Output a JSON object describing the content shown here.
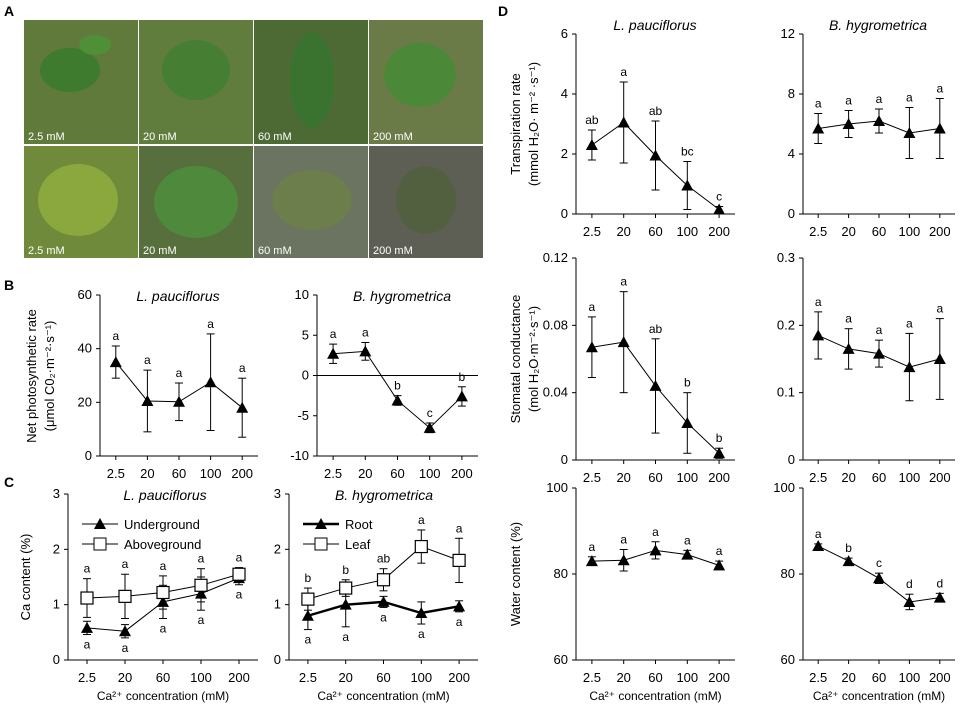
{
  "figure": {
    "panel_labels": {
      "A": "A",
      "B": "B",
      "C": "C",
      "D": "D"
    },
    "photos": [
      {
        "label": "2.5 mM",
        "bg": "#5f7a3a"
      },
      {
        "label": "20 mM",
        "bg": "#607d3e"
      },
      {
        "label": "60 mM",
        "bg": "#4d6a35"
      },
      {
        "label": "200 mM",
        "bg": "#6b7b48"
      },
      {
        "label": "2.5 mM",
        "bg": "#6f8a3a"
      },
      {
        "label": "20 mM",
        "bg": "#566f3d"
      },
      {
        "label": "60 mM",
        "bg": "#6a7460"
      },
      {
        "label": "200 mM",
        "bg": "#5d5f55"
      }
    ],
    "colors": {
      "line": "#000000",
      "photo_caption": "#ffffff"
    }
  },
  "chart_data": [
    {
      "id": "B1",
      "type": "line",
      "title": "L. pauciflorus",
      "ylabel": [
        "Net photosynthetic rate",
        "(μmol C0₂·m⁻²·s⁻¹)"
      ],
      "xlabel": "",
      "categories": [
        "2.5",
        "20",
        "60",
        "100",
        "200"
      ],
      "ylim": [
        0,
        60
      ],
      "yticks": [
        "0",
        "20",
        "40",
        "60"
      ],
      "series": [
        {
          "name": "",
          "marker": "triangle",
          "values": [
            35,
            20.5,
            20.2,
            27.5,
            18
          ],
          "errors": [
            6,
            11.5,
            7,
            18,
            11
          ],
          "letters": [
            "a",
            "a",
            "a",
            "a",
            "a"
          ]
        }
      ]
    },
    {
      "id": "B2",
      "type": "line",
      "title": "B. hygrometrica",
      "ylabel": [],
      "xlabel": "",
      "categories": [
        "2.5",
        "20",
        "60",
        "100",
        "200"
      ],
      "ylim": [
        -10,
        10
      ],
      "yticks": [
        "-10",
        "-5",
        "0",
        "5",
        "10"
      ],
      "zero_line": true,
      "series": [
        {
          "name": "",
          "marker": "triangle",
          "values": [
            2.7,
            3.0,
            -3.1,
            -6.5,
            -2.6
          ],
          "errors": [
            1.2,
            1.1,
            0.6,
            0.6,
            1.2
          ],
          "letters": [
            "a",
            "a",
            "b",
            "c",
            "b"
          ]
        }
      ]
    },
    {
      "id": "C1",
      "type": "line",
      "title": "L. pauciflorus",
      "ylabel": [
        "Ca content (%)"
      ],
      "xlabel": "Ca²⁺ concentration (mM)",
      "categories": [
        "2.5",
        "20",
        "60",
        "100",
        "200"
      ],
      "ylim": [
        0,
        3
      ],
      "yticks": [
        "0",
        "1",
        "2",
        "3"
      ],
      "legend": [
        "Underground",
        "Aboveground"
      ],
      "series": [
        {
          "name": "Underground",
          "marker": "triangle",
          "values": [
            0.58,
            0.52,
            1.05,
            1.2,
            1.48
          ],
          "errors": [
            0.12,
            0.12,
            0.3,
            0.3,
            0.12
          ],
          "letters": [
            "a",
            "a",
            "a",
            "a",
            "a"
          ]
        },
        {
          "name": "Aboveground",
          "marker": "square",
          "values": [
            1.12,
            1.15,
            1.22,
            1.35,
            1.55
          ],
          "errors": [
            0.35,
            0.4,
            0.3,
            0.3,
            0.12
          ],
          "letters": [
            "a",
            "a",
            "a",
            "a",
            "a"
          ]
        }
      ]
    },
    {
      "id": "C2",
      "type": "line",
      "title": "B. hygrometrica",
      "ylabel": [],
      "xlabel": "Ca²⁺ concentration (mM)",
      "categories": [
        "2.5",
        "20",
        "60",
        "100",
        "200"
      ],
      "ylim": [
        0,
        3
      ],
      "yticks": [
        "0",
        "1",
        "2",
        "3"
      ],
      "legend": [
        "Root",
        "Leaf"
      ],
      "series": [
        {
          "name": "Root",
          "marker": "triangle",
          "values": [
            0.8,
            1.0,
            1.05,
            0.85,
            0.97
          ],
          "errors": [
            0.25,
            0.4,
            0.1,
            0.2,
            0.1
          ],
          "letters": [
            "a",
            "a",
            "a",
            "a",
            "a"
          ]
        },
        {
          "name": "Leaf",
          "marker": "square",
          "values": [
            1.1,
            1.3,
            1.45,
            2.05,
            1.8
          ],
          "errors": [
            0.2,
            0.15,
            0.2,
            0.3,
            0.4
          ],
          "letters": [
            "b",
            "b",
            "ab",
            "a",
            "a"
          ]
        }
      ]
    },
    {
      "id": "D1",
      "type": "line",
      "title": "L. pauciflorus",
      "ylabel": [
        "Transpiration rate",
        "(mmol H₂O· m⁻² ·s⁻¹)"
      ],
      "xlabel": "",
      "categories": [
        "2.5",
        "20",
        "60",
        "100",
        "200"
      ],
      "ylim": [
        0,
        6
      ],
      "yticks": [
        "0",
        "2",
        "4",
        "6"
      ],
      "series": [
        {
          "name": "",
          "marker": "triangle",
          "values": [
            2.3,
            3.05,
            1.95,
            0.95,
            0.15
          ],
          "errors": [
            0.5,
            1.35,
            1.15,
            0.8,
            0.1
          ],
          "letters": [
            "ab",
            "a",
            "ab",
            "bc",
            "c"
          ]
        }
      ]
    },
    {
      "id": "D2",
      "type": "line",
      "title": "B. hygrometrica",
      "ylabel": [],
      "xlabel": "",
      "categories": [
        "2.5",
        "20",
        "60",
        "100",
        "200"
      ],
      "ylim": [
        0,
        12
      ],
      "yticks": [
        "0",
        "4",
        "8",
        "12"
      ],
      "series": [
        {
          "name": "",
          "marker": "triangle",
          "values": [
            5.7,
            6.0,
            6.2,
            5.4,
            5.7
          ],
          "errors": [
            1.0,
            0.9,
            0.8,
            1.7,
            2.0
          ],
          "letters": [
            "a",
            "a",
            "a",
            "a",
            "a"
          ]
        }
      ]
    },
    {
      "id": "D3",
      "type": "line",
      "title": "",
      "ylabel": [
        "Stomatal conductance",
        "(mol H₂O·m⁻²·s⁻¹)"
      ],
      "xlabel": "",
      "categories": [
        "2.5",
        "20",
        "60",
        "100",
        "200"
      ],
      "ylim": [
        0,
        0.12
      ],
      "yticks": [
        "0",
        "0.04",
        "0.08",
        "0.12"
      ],
      "series": [
        {
          "name": "",
          "marker": "triangle",
          "values": [
            0.067,
            0.07,
            0.044,
            0.022,
            0.004
          ],
          "errors": [
            0.018,
            0.03,
            0.028,
            0.018,
            0.003
          ],
          "letters": [
            "a",
            "a",
            "ab",
            "b",
            "b"
          ]
        }
      ]
    },
    {
      "id": "D4",
      "type": "line",
      "title": "",
      "ylabel": [],
      "xlabel": "",
      "categories": [
        "2.5",
        "20",
        "60",
        "100",
        "200"
      ],
      "ylim": [
        0,
        0.3
      ],
      "yticks": [
        "0",
        "0.1",
        "0.2",
        "0.3"
      ],
      "series": [
        {
          "name": "",
          "marker": "triangle",
          "values": [
            0.185,
            0.165,
            0.158,
            0.138,
            0.15
          ],
          "errors": [
            0.035,
            0.03,
            0.02,
            0.05,
            0.06
          ],
          "letters": [
            "a",
            "a",
            "a",
            "a",
            "a"
          ]
        }
      ]
    },
    {
      "id": "D5",
      "type": "line",
      "title": "",
      "ylabel": [
        "Water content (%)"
      ],
      "xlabel": "Ca²⁺ concentration (mM)",
      "categories": [
        "2.5",
        "20",
        "60",
        "100",
        "200"
      ],
      "ylim": [
        60,
        100
      ],
      "yticks": [
        "60",
        "80",
        "100"
      ],
      "series": [
        {
          "name": "",
          "marker": "triangle",
          "values": [
            83,
            83.2,
            85.5,
            84.5,
            82
          ],
          "errors": [
            1.0,
            2.5,
            2.0,
            1.0,
            1.0
          ],
          "letters": [
            "a",
            "a",
            "a",
            "a",
            "a"
          ]
        }
      ]
    },
    {
      "id": "D6",
      "type": "line",
      "title": "",
      "ylabel": [],
      "xlabel": "Ca²⁺ concentration (mM)",
      "categories": [
        "2.5",
        "20",
        "60",
        "100",
        "200"
      ],
      "ylim": [
        60,
        100
      ],
      "yticks": [
        "60",
        "80",
        "100"
      ],
      "series": [
        {
          "name": "",
          "marker": "triangle",
          "values": [
            86.5,
            83,
            79,
            73.5,
            74.5
          ],
          "errors": [
            0.5,
            0.7,
            1.2,
            1.8,
            1.0
          ],
          "letters": [
            "a",
            "b",
            "c",
            "d",
            "d"
          ]
        }
      ]
    }
  ]
}
